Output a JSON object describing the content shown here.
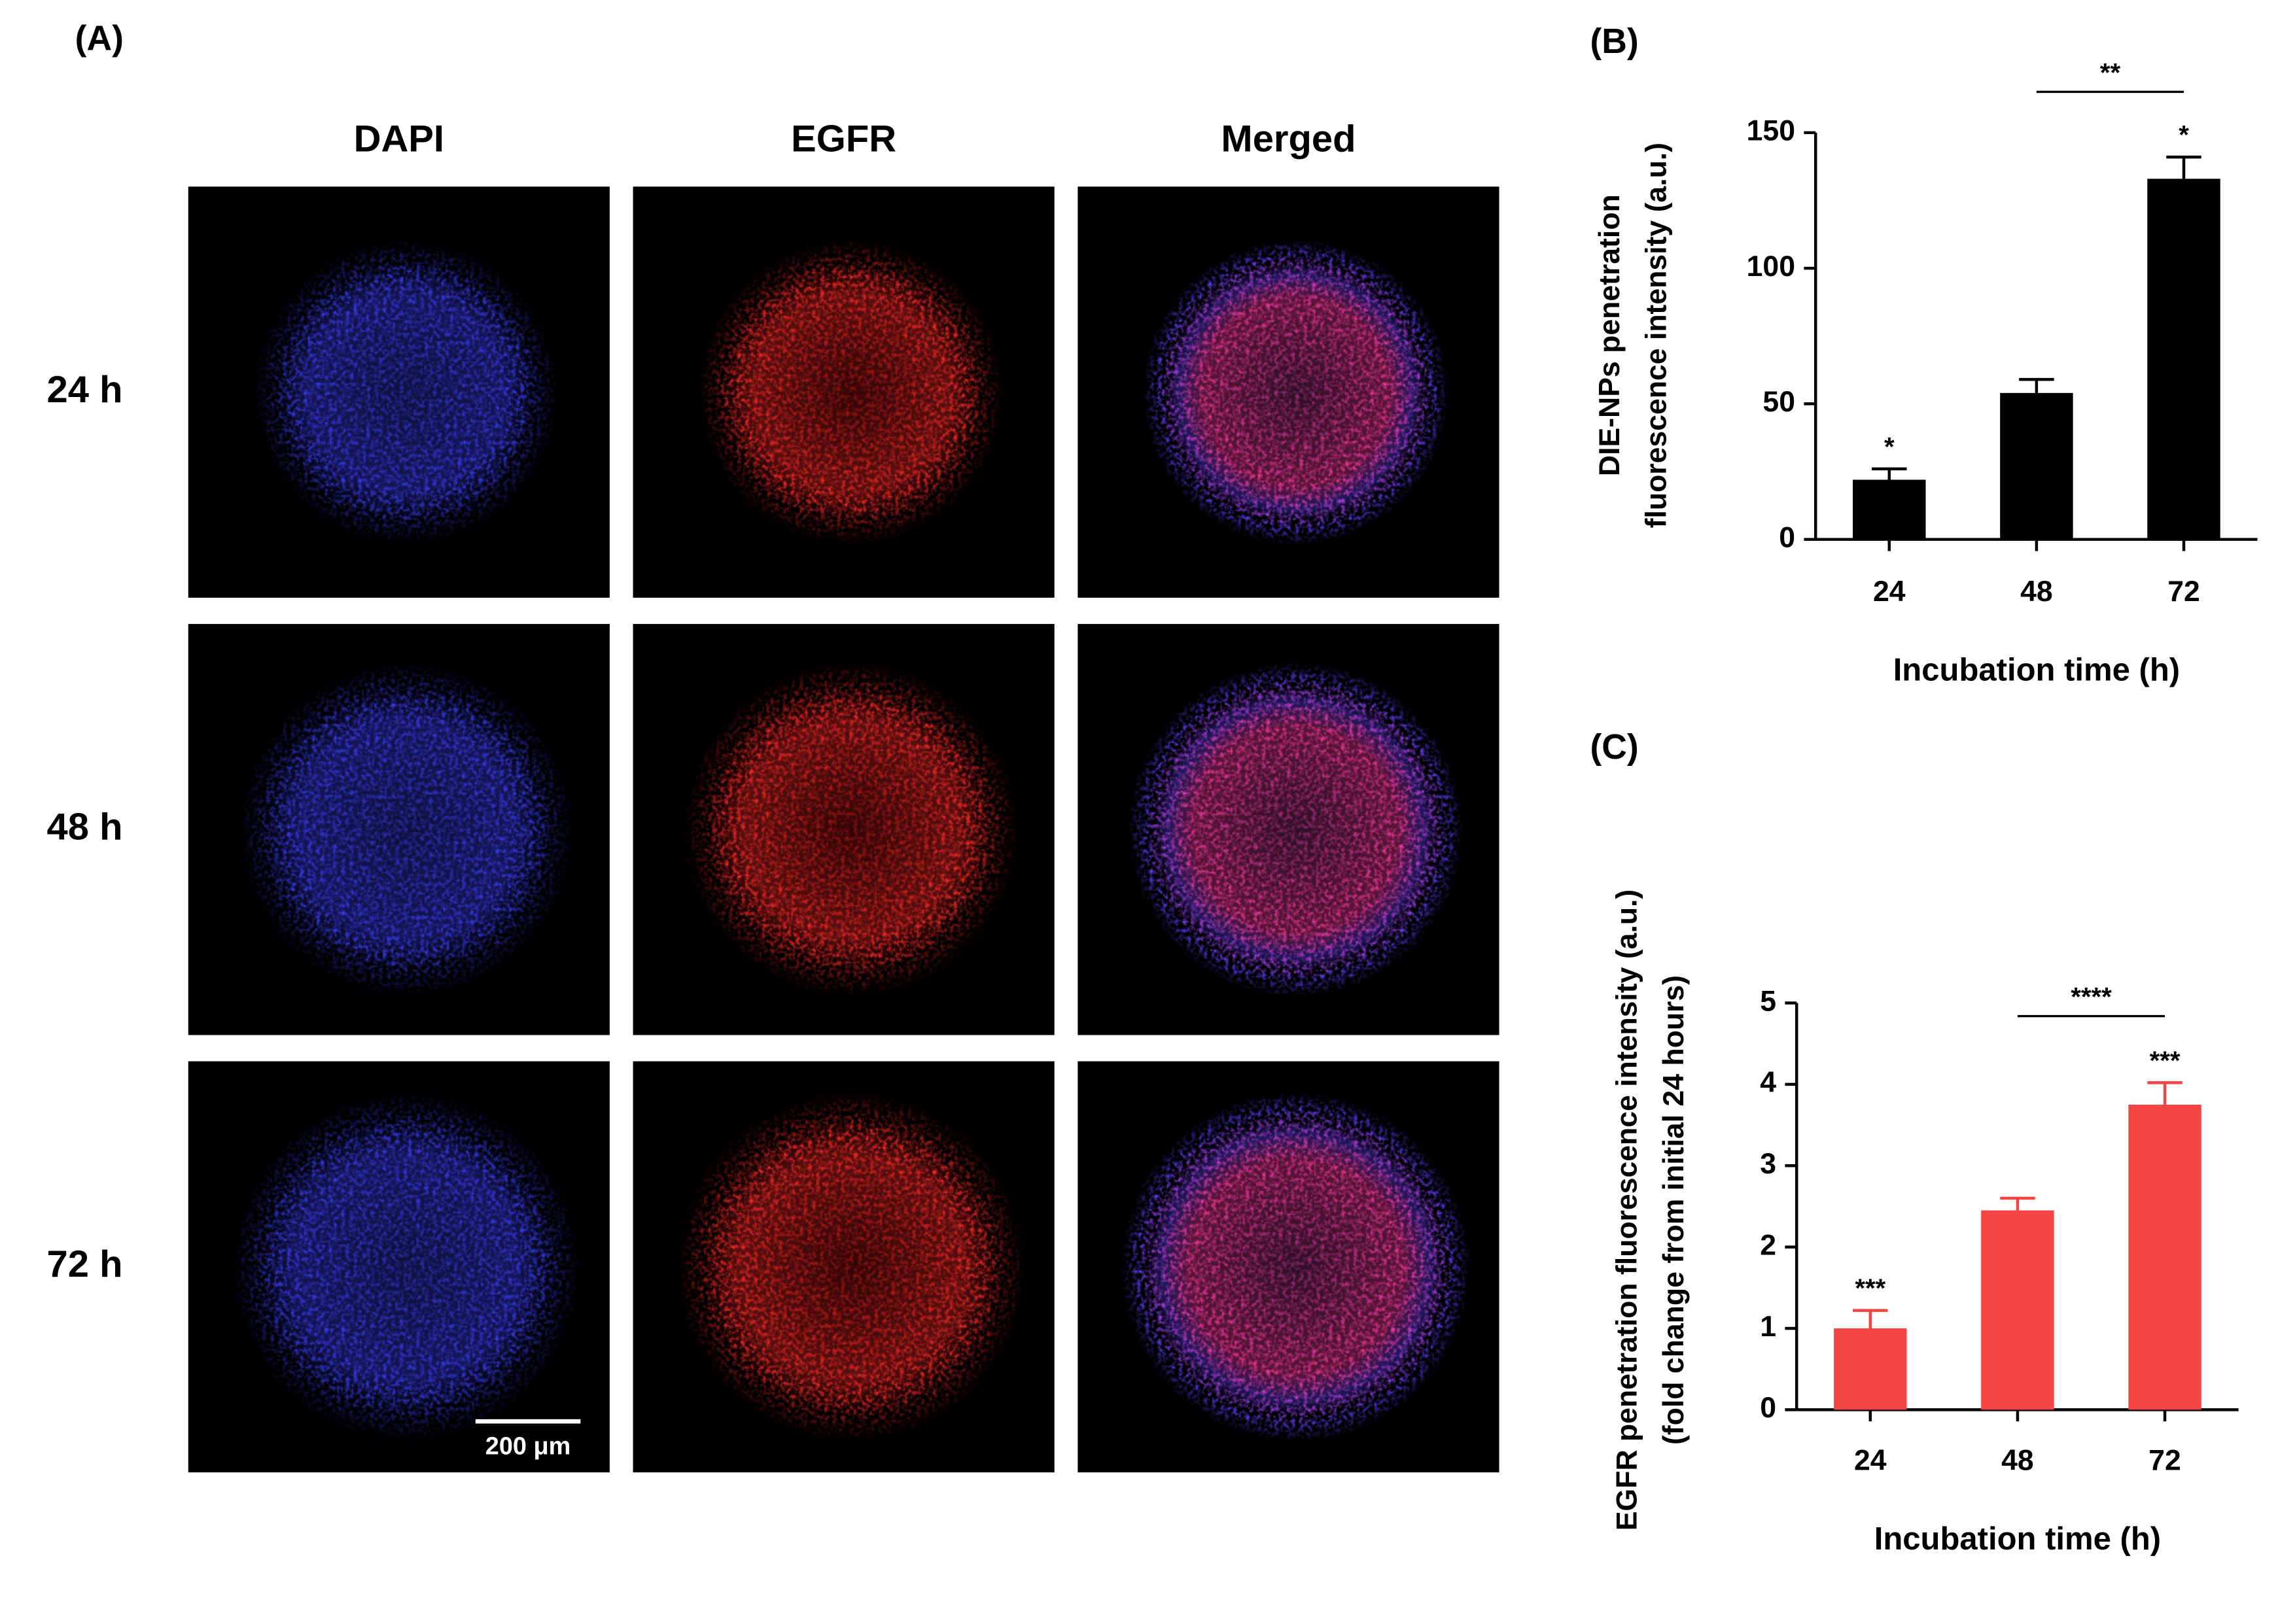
{
  "panel_a": {
    "label": "(A)",
    "columns": [
      "DAPI",
      "EGFR",
      "Merged"
    ],
    "rows": [
      "24 h",
      "48 h",
      "72 h"
    ],
    "scale_bar": "200 μm"
  },
  "chart_data": [
    {
      "type": "bar",
      "panel_label": "(B)",
      "ylabel": [
        "DIE-NPs penetration",
        "fluorescence intensity (a.u.)"
      ],
      "xlabel": "Incubation time (h)",
      "categories": [
        "24",
        "48",
        "72"
      ],
      "values": [
        22,
        54,
        133
      ],
      "errors": [
        4,
        5,
        8
      ],
      "color": "#000000",
      "ylim": [
        0,
        150
      ],
      "yticks": [
        0,
        50,
        100,
        150
      ],
      "bar_labels": [
        "*",
        null,
        "*"
      ],
      "brackets": [
        {
          "categories": [
            "48",
            "72"
          ],
          "label": "**"
        }
      ]
    },
    {
      "type": "bar",
      "panel_label": "(C)",
      "ylabel": [
        "EGFR penetration fluorescence intensity (a.u.)",
        "(fold change from initial 24 hours)"
      ],
      "xlabel": "Incubation time (h)",
      "categories": [
        "24",
        "48",
        "72"
      ],
      "values": [
        1.0,
        2.45,
        3.75
      ],
      "errors": [
        0.22,
        0.15,
        0.27
      ],
      "color": "#f44444",
      "ylim": [
        0,
        5
      ],
      "yticks": [
        0,
        1,
        2,
        3,
        4,
        5
      ],
      "bar_labels": [
        "***",
        null,
        "***"
      ],
      "brackets": [
        {
          "categories": [
            "48",
            "72"
          ],
          "label": "****"
        }
      ]
    }
  ]
}
